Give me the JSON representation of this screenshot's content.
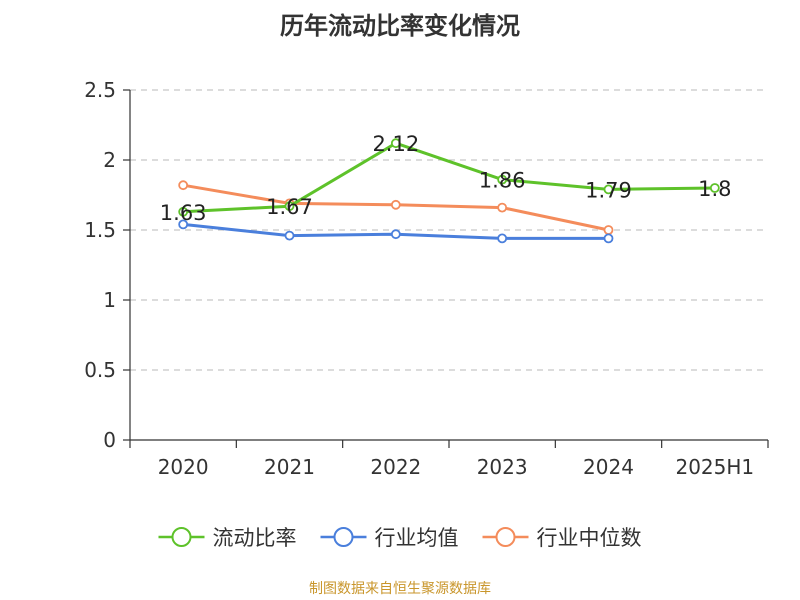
{
  "chart_data": {
    "type": "line",
    "title": "历年流动比率变化情况",
    "categories": [
      "2020",
      "2021",
      "2022",
      "2023",
      "2024",
      "2025H1"
    ],
    "ylim": [
      0,
      2.5
    ],
    "yticks": [
      0,
      0.5,
      1,
      1.5,
      2,
      2.5
    ],
    "grid": true,
    "legend_position": "bottom",
    "series": [
      {
        "name": "流动比率",
        "color": "#5ec22a",
        "values": [
          1.63,
          1.67,
          2.12,
          1.86,
          1.79,
          1.8
        ],
        "labels": [
          "1.63",
          "1.67",
          "2.12",
          "1.86",
          "1.79",
          "1.8"
        ]
      },
      {
        "name": "行业均值",
        "color": "#4a7fdc",
        "values": [
          1.54,
          1.46,
          1.47,
          1.44,
          1.44,
          null
        ]
      },
      {
        "name": "行业中位数",
        "color": "#f48c5b",
        "values": [
          1.82,
          1.69,
          1.68,
          1.66,
          1.5,
          null
        ]
      }
    ]
  },
  "source_text": "制图数据来自恒生聚源数据库"
}
